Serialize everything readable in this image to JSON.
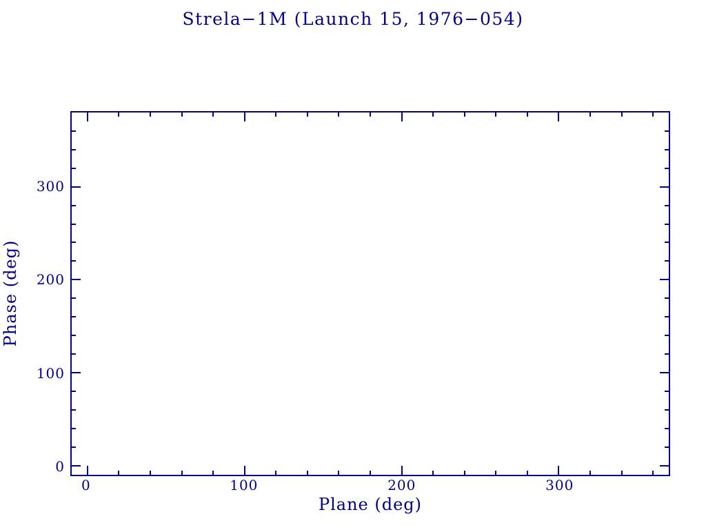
{
  "chart_data": {
    "type": "scatter",
    "title": "Strela−1M (Launch 15, 1976−054)",
    "xlabel": "Plane (deg)",
    "ylabel": "Phase (deg)",
    "xlim": [
      -10,
      370
    ],
    "ylim": [
      -10,
      380
    ],
    "x_major_ticks": [
      0,
      100,
      200,
      300
    ],
    "y_major_ticks": [
      0,
      100,
      200,
      300
    ],
    "x_tick_labels": [
      "0",
      "100",
      "200",
      "300"
    ],
    "y_tick_labels": [
      "0",
      "100",
      "200",
      "300"
    ],
    "minor_tick_step": 20,
    "tick_direction": "in",
    "ticks_mirrored_all_sides": true,
    "grid": false,
    "legend": null,
    "series": [],
    "points": [],
    "frame_color": "#00008B",
    "text_color": "#00008B",
    "background_color": "#FFFFFF"
  }
}
